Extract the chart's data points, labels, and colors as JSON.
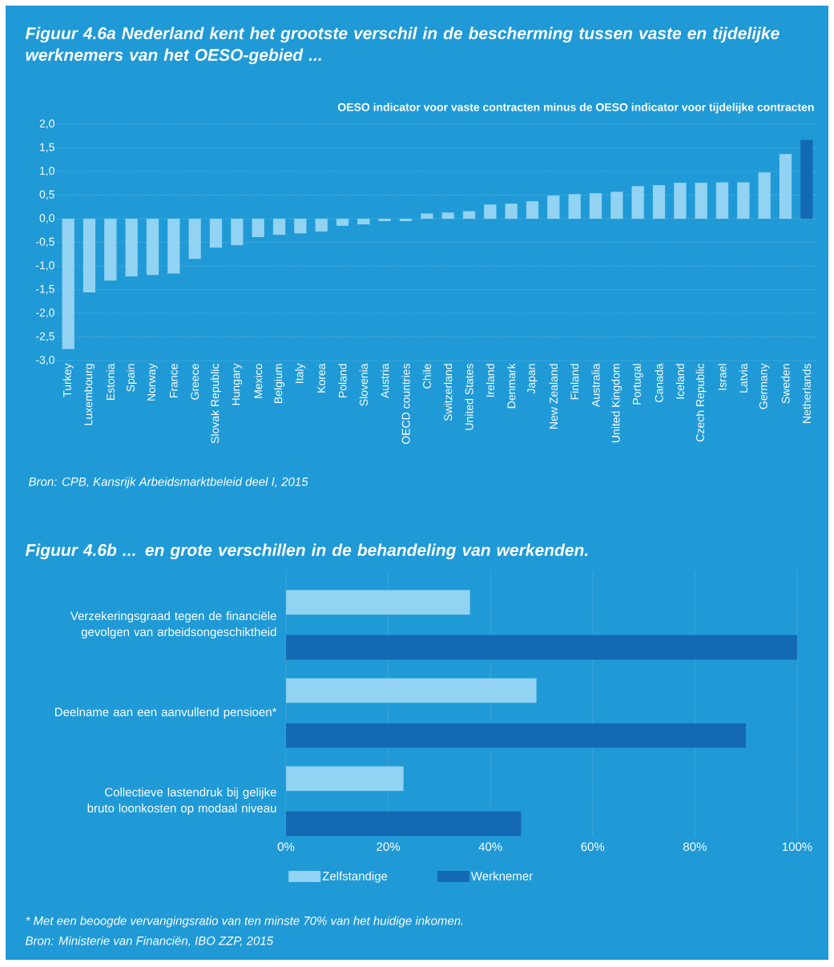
{
  "chart_data": [
    {
      "type": "bar",
      "title": "Figuur 4.6a  Nederland kent het grootste verschil in de bescherming tussen vaste en tijdelijke werknemers van het OESO-gebied ...",
      "ylabel": "OESO indicator voor vaste contracten minus de OESO indicator voor tijdelijke contracten",
      "categories": [
        "Turkey",
        "Luxembourg",
        "Estonia",
        "Spain",
        "Norway",
        "France",
        "Greece",
        "Slovak Republic",
        "Hungary",
        "Mexico",
        "Belgium",
        "Italy",
        "Korea",
        "Poland",
        "Slovenia",
        "Austria",
        "OECD countries",
        "Chile",
        "Switzerland",
        "United States",
        "Ireland",
        "Denmark",
        "Japan",
        "New Zealand",
        "Finland",
        "Australia",
        "United Kingdom",
        "Portugal",
        "Canada",
        "Iceland",
        "Czech Republic",
        "Israel",
        "Latvia",
        "Germany",
        "Sweden",
        "Netherlands"
      ],
      "values": [
        -2.76,
        -1.56,
        -1.31,
        -1.22,
        -1.19,
        -1.16,
        -0.85,
        -0.61,
        -0.56,
        -0.39,
        -0.34,
        -0.31,
        -0.27,
        -0.15,
        -0.12,
        -0.05,
        -0.05,
        0.11,
        0.13,
        0.16,
        0.3,
        0.32,
        0.37,
        0.49,
        0.52,
        0.54,
        0.57,
        0.69,
        0.71,
        0.76,
        0.76,
        0.77,
        0.77,
        0.98,
        1.37,
        1.67
      ],
      "colors": [
        "#92d2f2",
        "#92d2f2",
        "#92d2f2",
        "#92d2f2",
        "#92d2f2",
        "#92d2f2",
        "#92d2f2",
        "#92d2f2",
        "#92d2f2",
        "#92d2f2",
        "#92d2f2",
        "#92d2f2",
        "#92d2f2",
        "#92d2f2",
        "#92d2f2",
        "#92d2f2",
        "#92d2f2",
        "#92d2f2",
        "#92d2f2",
        "#92d2f2",
        "#92d2f2",
        "#92d2f2",
        "#92d2f2",
        "#92d2f2",
        "#92d2f2",
        "#92d2f2",
        "#92d2f2",
        "#92d2f2",
        "#92d2f2",
        "#92d2f2",
        "#92d2f2",
        "#92d2f2",
        "#92d2f2",
        "#92d2f2",
        "#92d2f2",
        "#1469b4"
      ],
      "ylim": [
        -3,
        2
      ],
      "yticks": [
        {
          "value": -3,
          "label": "-3,0"
        },
        {
          "value": -2.5,
          "label": "-2,5"
        },
        {
          "value": -2,
          "label": "-2,0"
        },
        {
          "value": -1.5,
          "label": "-1,5"
        },
        {
          "value": -1,
          "label": "-1,0"
        },
        {
          "value": -0.5,
          "label": "-0,5"
        },
        {
          "value": 0,
          "label": "0,0"
        },
        {
          "value": 0.5,
          "label": "0,5"
        },
        {
          "value": 1,
          "label": "1,0"
        },
        {
          "value": 1.5,
          "label": "1,5"
        },
        {
          "value": 2,
          "label": "2,0"
        }
      ],
      "grid": "y",
      "annotations": [
        "Bron: CPB, *Kansrijk Arbeidsmarktbeleid deel I*, 2015"
      ]
    },
    {
      "type": "bar",
      "orientation": "horizontal",
      "title": "Figuur 4.6b  ... en grote verschillen in de behandeling van werkenden.",
      "categories": [
        "Verzekeringsgraad tegen de financiële gevolgen van arbeidsongeschiktheid",
        "Deelname aan een aanvullend pensioen*",
        "Collectieve lastendruk bij gelijke bruto loonkosten op modaal niveau"
      ],
      "series": [
        {
          "name": "Zelfstandige",
          "color": "#92d2f2",
          "values": [
            36,
            49,
            23
          ]
        },
        {
          "name": "Werknemer",
          "color": "#1469b4",
          "values": [
            100,
            90,
            46
          ]
        }
      ],
      "xlim": [
        0,
        100
      ],
      "xticks": [
        {
          "value": 0,
          "label": "0%"
        },
        {
          "value": 20,
          "label": "20%"
        },
        {
          "value": 40,
          "label": "40%"
        },
        {
          "value": 60,
          "label": "60%"
        },
        {
          "value": 80,
          "label": "80%"
        },
        {
          "value": 100,
          "label": "100%"
        }
      ],
      "grid": "x",
      "legend": "bottom",
      "annotations": [
        "* Met een beoogde vervangingsratio van ten minste 70% van het huidige inkomen.",
        "Bron: Ministerie van Financiën, IBO ZZP, 2015"
      ]
    }
  ]
}
